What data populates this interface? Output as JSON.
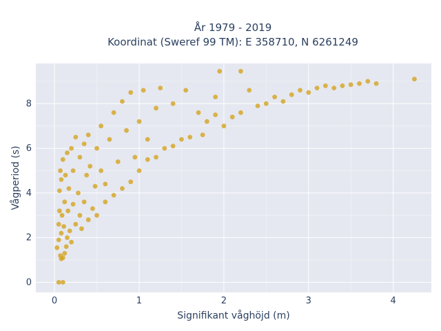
{
  "chart_data": {
    "type": "scatter",
    "title_line1": "År 1979 - 2019",
    "title_line2": "Koordinat (Sweref 99 TM): E 358710, N 6261249",
    "xlabel": "Signifikant våghöjd (m)",
    "ylabel": "Vågperiod (s)",
    "xlim": [
      -0.22,
      4.45
    ],
    "ylim": [
      -0.45,
      9.8
    ],
    "xticks": [
      0,
      1,
      2,
      3,
      4
    ],
    "yticks": [
      0,
      2,
      4,
      6,
      8
    ],
    "grid": true,
    "legend": "none",
    "marker_color": "#d4a21f",
    "plot_bg": "#e5e8f0",
    "series": [
      {
        "points": [
          [
            0.03,
            1.55
          ],
          [
            0.05,
            1.9
          ],
          [
            0.05,
            2.6
          ],
          [
            0.06,
            3.2
          ],
          [
            0.06,
            4.1
          ],
          [
            0.07,
            1.2
          ],
          [
            0.07,
            5.0
          ],
          [
            0.08,
            1.05
          ],
          [
            0.08,
            2.2
          ],
          [
            0.08,
            4.6
          ],
          [
            0.09,
            3.0
          ],
          [
            0.1,
            1.1
          ],
          [
            0.1,
            5.5
          ],
          [
            0.11,
            2.5
          ],
          [
            0.12,
            3.6
          ],
          [
            0.12,
            1.3
          ],
          [
            0.13,
            4.8
          ],
          [
            0.14,
            1.6
          ],
          [
            0.15,
            2.0
          ],
          [
            0.15,
            5.8
          ],
          [
            0.16,
            3.2
          ],
          [
            0.17,
            4.2
          ],
          [
            0.18,
            2.3
          ],
          [
            0.2,
            6.0
          ],
          [
            0.2,
            1.8
          ],
          [
            0.22,
            3.5
          ],
          [
            0.22,
            5.0
          ],
          [
            0.25,
            2.6
          ],
          [
            0.25,
            6.5
          ],
          [
            0.28,
            4.0
          ],
          [
            0.3,
            3.0
          ],
          [
            0.3,
            5.6
          ],
          [
            0.32,
            2.4
          ],
          [
            0.35,
            6.2
          ],
          [
            0.35,
            3.6
          ],
          [
            0.38,
            4.8
          ],
          [
            0.4,
            2.8
          ],
          [
            0.4,
            6.6
          ],
          [
            0.42,
            5.2
          ],
          [
            0.45,
            3.3
          ],
          [
            0.48,
            4.3
          ],
          [
            0.5,
            6.0
          ],
          [
            0.5,
            3.0
          ],
          [
            0.55,
            5.0
          ],
          [
            0.55,
            7.0
          ],
          [
            0.6,
            3.6
          ],
          [
            0.6,
            4.4
          ],
          [
            0.65,
            6.4
          ],
          [
            0.7,
            3.9
          ],
          [
            0.7,
            7.6
          ],
          [
            0.75,
            5.4
          ],
          [
            0.8,
            4.2
          ],
          [
            0.8,
            8.1
          ],
          [
            0.85,
            6.8
          ],
          [
            0.9,
            4.5
          ],
          [
            0.9,
            8.5
          ],
          [
            0.95,
            5.6
          ],
          [
            1.0,
            5.0
          ],
          [
            1.0,
            7.2
          ],
          [
            1.05,
            8.6
          ],
          [
            1.1,
            5.5
          ],
          [
            1.1,
            6.4
          ],
          [
            1.2,
            5.6
          ],
          [
            1.2,
            7.8
          ],
          [
            1.25,
            8.7
          ],
          [
            1.3,
            6.0
          ],
          [
            1.4,
            6.1
          ],
          [
            1.4,
            8.0
          ],
          [
            1.5,
            6.4
          ],
          [
            1.55,
            8.6
          ],
          [
            1.6,
            6.5
          ],
          [
            1.7,
            7.6
          ],
          [
            1.75,
            6.6
          ],
          [
            1.8,
            7.2
          ],
          [
            1.9,
            7.5
          ],
          [
            1.9,
            8.3
          ],
          [
            2.0,
            7.0
          ],
          [
            2.1,
            7.4
          ],
          [
            2.2,
            7.6
          ],
          [
            2.3,
            8.6
          ],
          [
            2.4,
            7.9
          ],
          [
            2.5,
            8.0
          ],
          [
            2.6,
            8.3
          ],
          [
            2.7,
            8.1
          ],
          [
            2.8,
            8.4
          ],
          [
            2.9,
            8.6
          ],
          [
            3.0,
            8.5
          ],
          [
            3.1,
            8.7
          ],
          [
            3.2,
            8.8
          ],
          [
            3.3,
            8.7
          ],
          [
            3.4,
            8.8
          ],
          [
            3.5,
            8.85
          ],
          [
            3.6,
            8.9
          ],
          [
            3.7,
            9.0
          ],
          [
            3.8,
            8.9
          ],
          [
            4.25,
            9.1
          ],
          [
            1.95,
            9.45
          ],
          [
            2.2,
            9.45
          ],
          [
            0.05,
            0.0
          ],
          [
            0.1,
            0.0
          ]
        ]
      }
    ]
  }
}
